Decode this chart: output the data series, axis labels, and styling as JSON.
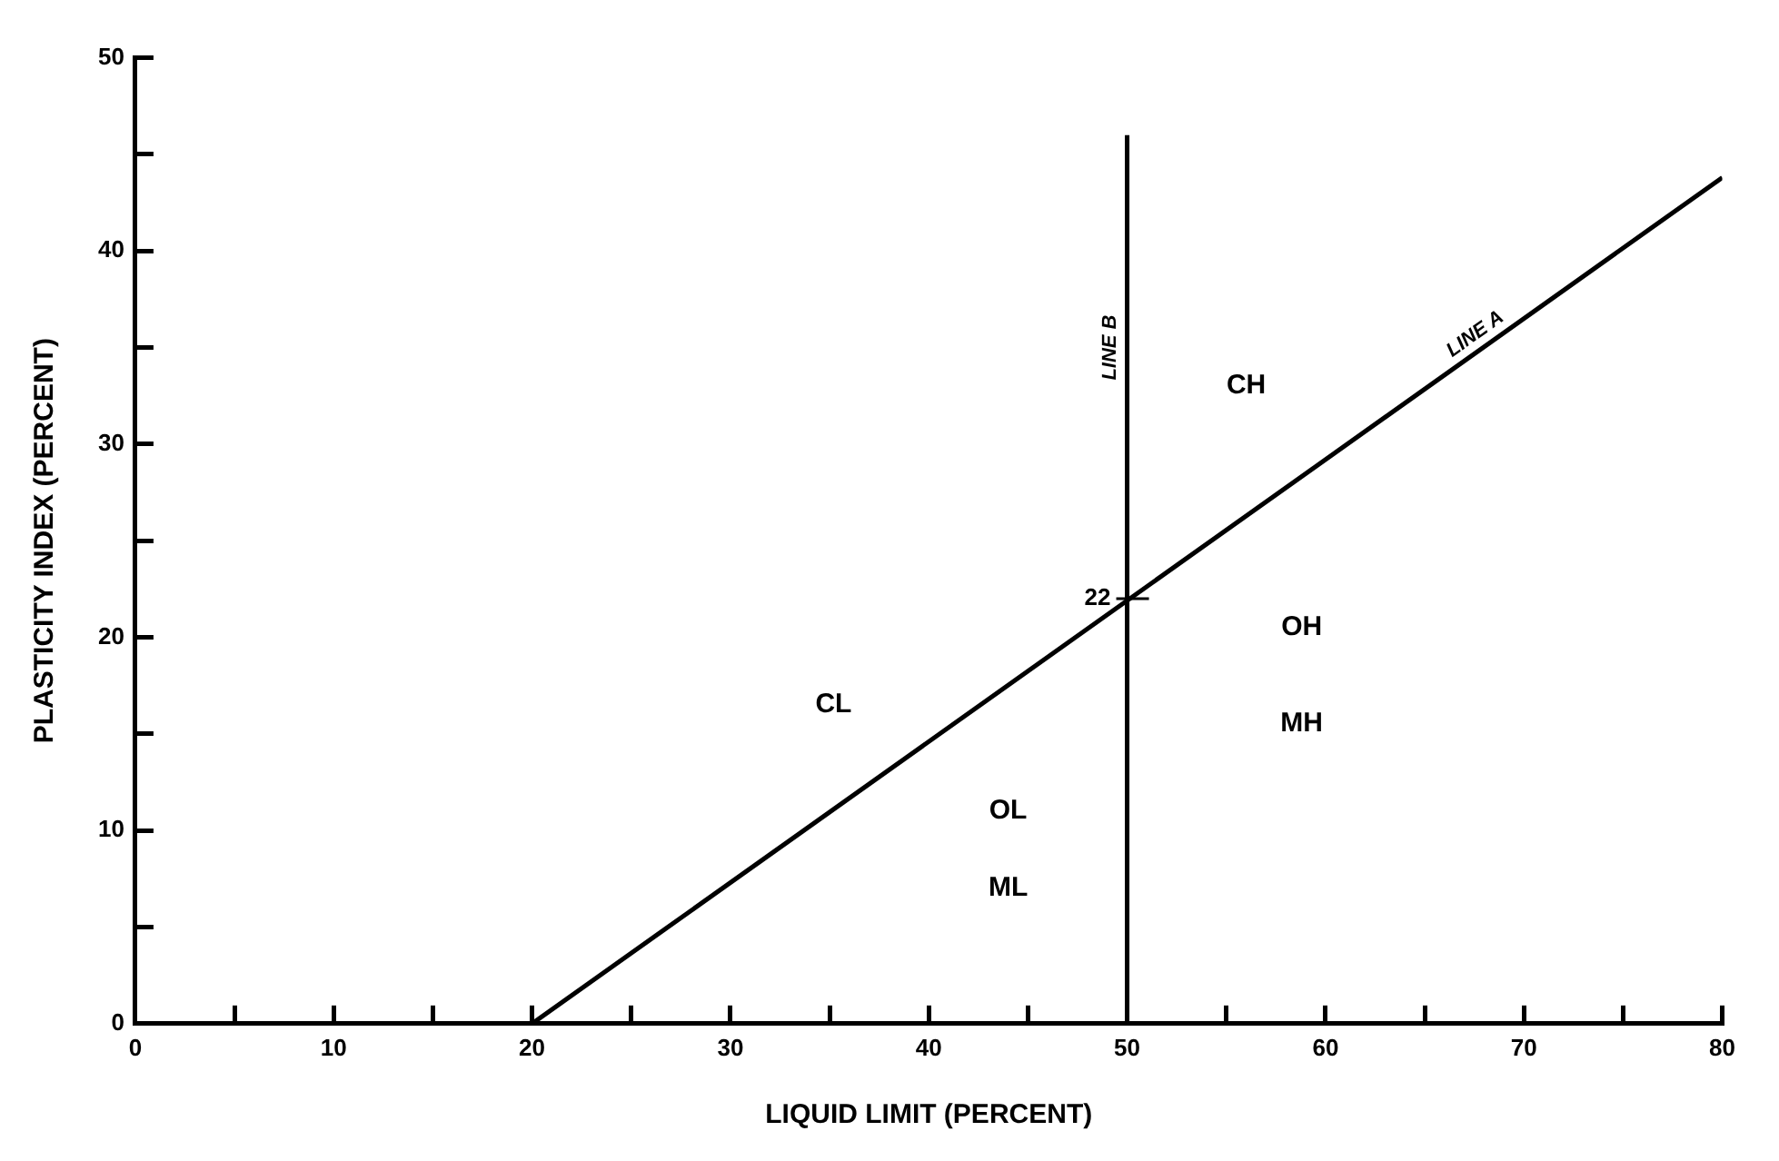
{
  "chart_data": {
    "type": "line",
    "xlabel": "LIQUID LIMIT (PERCENT)",
    "ylabel": "PLASTICITY INDEX (PERCENT)",
    "xlim": [
      0,
      80
    ],
    "ylim": [
      0,
      50
    ],
    "xticks": [
      0,
      {
        "value": 5,
        "label": null
      },
      10,
      {
        "value": 15,
        "label": null
      },
      20,
      {
        "value": 25,
        "label": null
      },
      30,
      {
        "value": 35,
        "label": null
      },
      40,
      {
        "value": 45,
        "label": null
      },
      50,
      {
        "value": 55,
        "label": null
      },
      60,
      {
        "value": 65,
        "label": null
      },
      70,
      {
        "value": 75,
        "label": null
      },
      80
    ],
    "yticks": [
      0,
      {
        "value": 5,
        "label": null
      },
      10,
      {
        "value": 15,
        "label": null
      },
      20,
      {
        "value": 25,
        "label": null
      },
      30,
      {
        "value": 35,
        "label": null
      },
      40,
      {
        "value": 45,
        "label": null
      },
      50
    ],
    "legend": false,
    "marker": "none",
    "line_style": "solid",
    "series": [
      {
        "name": "LINE A",
        "color": "#000000",
        "x": [
          20,
          80
        ],
        "values": [
          0,
          43.8
        ]
      }
    ],
    "ref_lines": [
      {
        "axis": "x",
        "value": 50,
        "label": "LINE B",
        "color": "#000000"
      }
    ],
    "annotations": [
      {
        "text": "22",
        "x": 50,
        "y": 22
      },
      "CH",
      "CL",
      "OH",
      "MH",
      "OL",
      "ML"
    ]
  }
}
